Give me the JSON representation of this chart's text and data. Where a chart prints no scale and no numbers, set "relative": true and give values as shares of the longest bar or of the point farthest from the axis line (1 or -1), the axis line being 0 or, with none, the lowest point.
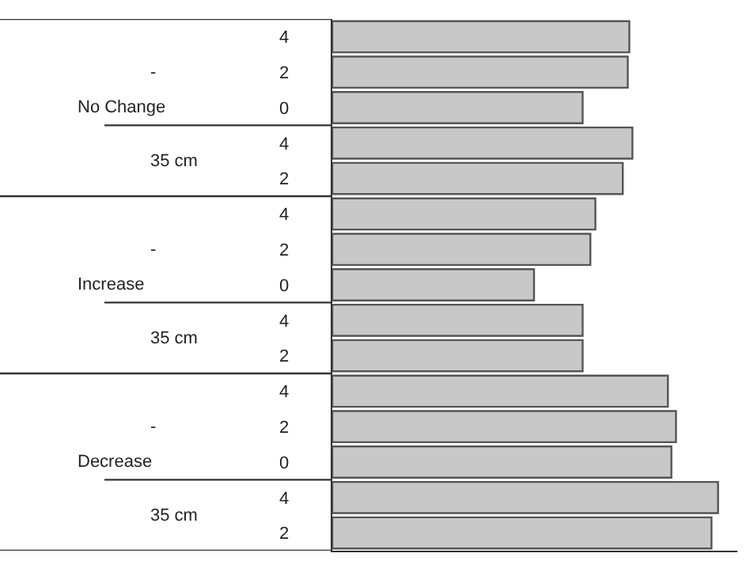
{
  "chart_data": {
    "type": "bar",
    "orientation": "horizontal",
    "relative": true,
    "categories": [
      "4",
      "2",
      "0",
      "4",
      "2",
      "4",
      "2",
      "0",
      "4",
      "2",
      "4",
      "2",
      "0",
      "4",
      "2"
    ],
    "values": [
      0.77,
      0.766,
      0.649,
      0.778,
      0.753,
      0.682,
      0.669,
      0.523,
      0.649,
      0.649,
      0.87,
      0.891,
      0.879,
      1,
      0.983
    ],
    "color": "#c8c8c8",
    "annotations": [
      "No Change",
      "-",
      "35 cm",
      "Increase",
      "-",
      "35 cm",
      "Decrease",
      "-",
      "35 cm"
    ]
  }
}
